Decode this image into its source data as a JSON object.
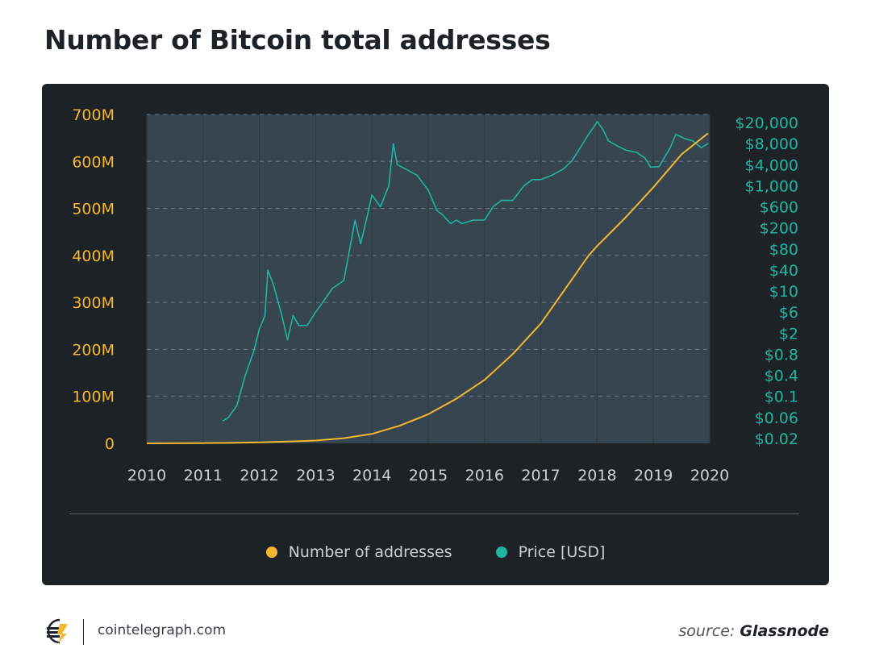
{
  "header": {
    "title": "Number of Bitcoin total addresses"
  },
  "footer": {
    "site": "cointelegraph.com",
    "source_prefix": "source:",
    "source_name": "Glassnode"
  },
  "colors": {
    "addresses": "#f5b730",
    "price": "#1eb6a2",
    "card_bg": "#1d2226",
    "plot_bg": "#364550"
  },
  "chart_data": {
    "type": "line",
    "title": "Number of Bitcoin total addresses",
    "x_ticks": [
      "2010",
      "2011",
      "2012",
      "2013",
      "2014",
      "2015",
      "2016",
      "2017",
      "2018",
      "2019",
      "2020"
    ],
    "xlim": [
      2010,
      2020
    ],
    "y_left": {
      "ticks": [
        "0",
        "100M",
        "200M",
        "300M",
        "400M",
        "500M",
        "600M",
        "700M"
      ],
      "tick_values": [
        0,
        100,
        200,
        300,
        400,
        500,
        600,
        700
      ],
      "unit": "M",
      "ylim": [
        0,
        700
      ]
    },
    "y_right": {
      "ticks": [
        "$20,000",
        "$8,000",
        "$4,000",
        "$1,000",
        "$600",
        "$200",
        "$80",
        "$40",
        "$10",
        "$6",
        "$2",
        "$0.8",
        "$0.4",
        "$0.1",
        "$0.06",
        "$0.02"
      ],
      "scale": "log"
    },
    "grid": true,
    "legend_position": "bottom-center",
    "series": [
      {
        "name": "Number of addresses",
        "axis": "left",
        "x": [
          2010.0,
          2011.0,
          2011.5,
          2012.0,
          2012.5,
          2013.0,
          2013.5,
          2014.0,
          2014.5,
          2015.0,
          2015.5,
          2016.0,
          2016.5,
          2017.0,
          2017.5,
          2017.85,
          2018.0,
          2018.5,
          2019.0,
          2019.5,
          2019.97
        ],
        "y": [
          0,
          0.5,
          1,
          2,
          4,
          6,
          11,
          20,
          38,
          62,
          95,
          135,
          190,
          255,
          340,
          400,
          420,
          480,
          545,
          615,
          660
        ]
      },
      {
        "name": "Price [USD]",
        "axis": "right",
        "x": [
          2011.35,
          2011.45,
          2011.6,
          2011.75,
          2011.9,
          2012.0,
          2012.1,
          2012.15,
          2012.25,
          2012.4,
          2012.5,
          2012.6,
          2012.7,
          2012.85,
          2013.0,
          2013.15,
          2013.3,
          2013.5,
          2013.7,
          2013.8,
          2013.9,
          2014.0,
          2014.15,
          2014.3,
          2014.38,
          2014.45,
          2014.6,
          2014.8,
          2015.0,
          2015.15,
          2015.25,
          2015.4,
          2015.5,
          2015.6,
          2015.8,
          2016.0,
          2016.15,
          2016.3,
          2016.5,
          2016.7,
          2016.85,
          2017.0,
          2017.2,
          2017.4,
          2017.55,
          2017.7,
          2017.85,
          2017.95,
          2018.0,
          2018.1,
          2018.2,
          2018.35,
          2018.5,
          2018.7,
          2018.85,
          2018.95,
          2019.1,
          2019.3,
          2019.4,
          2019.55,
          2019.7,
          2019.85,
          2019.97
        ],
        "y": [
          0.05,
          0.06,
          0.08,
          0.4,
          0.9,
          2.5,
          5,
          40,
          15,
          5,
          1.5,
          5,
          3,
          3,
          6,
          8,
          12,
          20,
          300,
          100,
          300,
          800,
          600,
          1000,
          8000,
          4000,
          3000,
          2000,
          900,
          500,
          400,
          250,
          300,
          250,
          300,
          300,
          600,
          700,
          700,
          1000,
          1500,
          1500,
          2000,
          3000,
          4500,
          7000,
          12000,
          17000,
          25000,
          15000,
          9000,
          7500,
          6500,
          6000,
          5000,
          3400,
          3500,
          7000,
          12000,
          10000,
          9000,
          7000,
          8000
        ]
      }
    ]
  }
}
